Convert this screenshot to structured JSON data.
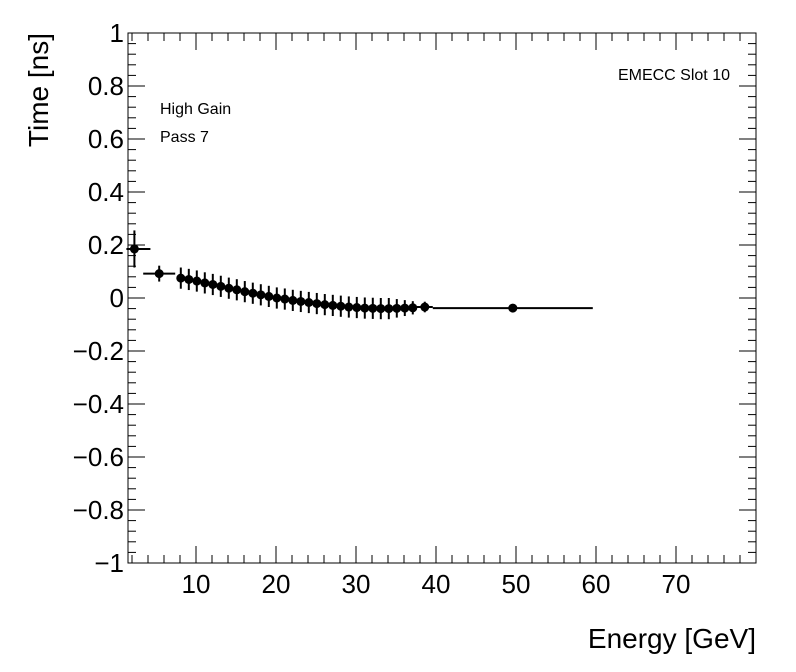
{
  "chart_data": {
    "type": "scatter",
    "title": "",
    "xlabel": "Energy [GeV]",
    "ylabel": "Time [ns]",
    "xlim": [
      1.5,
      80
    ],
    "ylim": [
      -1,
      1
    ],
    "x_ticks": [
      10,
      20,
      30,
      40,
      50,
      60,
      70
    ],
    "x_tick_labels": [
      "10",
      "20",
      "30",
      "40",
      "50",
      "60",
      "70"
    ],
    "y_ticks": [
      -1,
      -0.8,
      -0.6,
      -0.4,
      -0.2,
      0,
      0.2,
      0.4,
      0.6,
      0.8,
      1
    ],
    "y_tick_labels": [
      "−1",
      "−0.8",
      "−0.6",
      "−0.4",
      "−0.2",
      "0",
      "0.2",
      "0.4",
      "0.6",
      "0.8",
      "1"
    ],
    "annotations": {
      "top_right": "EMECC Slot 10",
      "line1": "High Gain",
      "line2": "Pass 7"
    },
    "series": [
      {
        "name": "EMECC Slot 10",
        "points": [
          {
            "x": 2.3,
            "y": 0.185,
            "xerr_lo": 1.0,
            "xerr_hi": 2.0,
            "yerr": 0.07
          },
          {
            "x": 5.4,
            "y": 0.092,
            "xerr_lo": 2.0,
            "xerr_hi": 2.0,
            "yerr": 0.03
          },
          {
            "x": 8.1,
            "y": 0.075,
            "xerr_lo": 0.5,
            "xerr_hi": 0.5,
            "yerr": 0.04
          },
          {
            "x": 9.1,
            "y": 0.07,
            "xerr_lo": 0.5,
            "xerr_hi": 0.5,
            "yerr": 0.04
          },
          {
            "x": 10.1,
            "y": 0.064,
            "xerr_lo": 0.5,
            "xerr_hi": 0.5,
            "yerr": 0.04
          },
          {
            "x": 11.1,
            "y": 0.057,
            "xerr_lo": 0.5,
            "xerr_hi": 0.5,
            "yerr": 0.04
          },
          {
            "x": 12.1,
            "y": 0.051,
            "xerr_lo": 0.5,
            "xerr_hi": 0.5,
            "yerr": 0.04
          },
          {
            "x": 13.1,
            "y": 0.044,
            "xerr_lo": 0.5,
            "xerr_hi": 0.5,
            "yerr": 0.04
          },
          {
            "x": 14.1,
            "y": 0.037,
            "xerr_lo": 0.5,
            "xerr_hi": 0.5,
            "yerr": 0.04
          },
          {
            "x": 15.1,
            "y": 0.031,
            "xerr_lo": 0.5,
            "xerr_hi": 0.5,
            "yerr": 0.04
          },
          {
            "x": 16.1,
            "y": 0.024,
            "xerr_lo": 0.5,
            "xerr_hi": 0.5,
            "yerr": 0.04
          },
          {
            "x": 17.1,
            "y": 0.018,
            "xerr_lo": 0.5,
            "xerr_hi": 0.5,
            "yerr": 0.04
          },
          {
            "x": 18.1,
            "y": 0.012,
            "xerr_lo": 0.5,
            "xerr_hi": 0.5,
            "yerr": 0.04
          },
          {
            "x": 19.1,
            "y": 0.006,
            "xerr_lo": 0.5,
            "xerr_hi": 0.5,
            "yerr": 0.04
          },
          {
            "x": 20.1,
            "y": 0.0,
            "xerr_lo": 0.5,
            "xerr_hi": 0.5,
            "yerr": 0.04
          },
          {
            "x": 21.1,
            "y": -0.004,
            "xerr_lo": 0.5,
            "xerr_hi": 0.5,
            "yerr": 0.04
          },
          {
            "x": 22.1,
            "y": -0.009,
            "xerr_lo": 0.5,
            "xerr_hi": 0.5,
            "yerr": 0.04
          },
          {
            "x": 23.1,
            "y": -0.013,
            "xerr_lo": 0.5,
            "xerr_hi": 0.5,
            "yerr": 0.04
          },
          {
            "x": 24.1,
            "y": -0.017,
            "xerr_lo": 0.5,
            "xerr_hi": 0.5,
            "yerr": 0.04
          },
          {
            "x": 25.1,
            "y": -0.021,
            "xerr_lo": 0.5,
            "xerr_hi": 0.5,
            "yerr": 0.04
          },
          {
            "x": 26.1,
            "y": -0.025,
            "xerr_lo": 0.5,
            "xerr_hi": 0.5,
            "yerr": 0.04
          },
          {
            "x": 27.1,
            "y": -0.028,
            "xerr_lo": 0.5,
            "xerr_hi": 0.5,
            "yerr": 0.04
          },
          {
            "x": 28.1,
            "y": -0.031,
            "xerr_lo": 0.5,
            "xerr_hi": 0.5,
            "yerr": 0.04
          },
          {
            "x": 29.1,
            "y": -0.034,
            "xerr_lo": 0.5,
            "xerr_hi": 0.5,
            "yerr": 0.04
          },
          {
            "x": 30.1,
            "y": -0.036,
            "xerr_lo": 0.5,
            "xerr_hi": 0.5,
            "yerr": 0.04
          },
          {
            "x": 31.1,
            "y": -0.038,
            "xerr_lo": 0.5,
            "xerr_hi": 0.5,
            "yerr": 0.04
          },
          {
            "x": 32.1,
            "y": -0.039,
            "xerr_lo": 0.5,
            "xerr_hi": 0.5,
            "yerr": 0.04
          },
          {
            "x": 33.1,
            "y": -0.04,
            "xerr_lo": 0.5,
            "xerr_hi": 0.5,
            "yerr": 0.04
          },
          {
            "x": 34.1,
            "y": -0.04,
            "xerr_lo": 0.5,
            "xerr_hi": 0.5,
            "yerr": 0.04
          },
          {
            "x": 35.1,
            "y": -0.039,
            "xerr_lo": 0.5,
            "xerr_hi": 0.5,
            "yerr": 0.035
          },
          {
            "x": 36.1,
            "y": -0.038,
            "xerr_lo": 0.5,
            "xerr_hi": 0.5,
            "yerr": 0.03
          },
          {
            "x": 37.1,
            "y": -0.037,
            "xerr_lo": 0.5,
            "xerr_hi": 0.5,
            "yerr": 0.025
          },
          {
            "x": 38.6,
            "y": -0.034,
            "xerr_lo": 1.0,
            "xerr_hi": 1.0,
            "yerr": 0.02
          },
          {
            "x": 49.6,
            "y": -0.038,
            "xerr_lo": 10.0,
            "xerr_hi": 10.0,
            "yerr": 0.012
          }
        ]
      }
    ]
  }
}
